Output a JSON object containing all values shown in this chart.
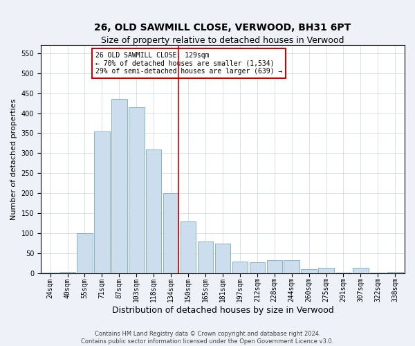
{
  "title": "26, OLD SAWMILL CLOSE, VERWOOD, BH31 6PT",
  "subtitle": "Size of property relative to detached houses in Verwood",
  "xlabel": "Distribution of detached houses by size in Verwood",
  "ylabel": "Number of detached properties",
  "categories": [
    "24sqm",
    "40sqm",
    "55sqm",
    "71sqm",
    "87sqm",
    "103sqm",
    "118sqm",
    "134sqm",
    "150sqm",
    "165sqm",
    "181sqm",
    "197sqm",
    "212sqm",
    "228sqm",
    "244sqm",
    "260sqm",
    "275sqm",
    "291sqm",
    "307sqm",
    "322sqm",
    "338sqm"
  ],
  "values": [
    2,
    4,
    100,
    355,
    435,
    415,
    310,
    200,
    130,
    80,
    75,
    30,
    28,
    33,
    33,
    10,
    13,
    2,
    13,
    2,
    4
  ],
  "bar_color": "#ccdded",
  "bar_edge_color": "#7aaabb",
  "vline_x_index": 7,
  "vline_color": "#cc0000",
  "annotation_text": "26 OLD SAWMILL CLOSE: 129sqm\n← 70% of detached houses are smaller (1,534)\n29% of semi-detached houses are larger (639) →",
  "annotation_box_color": "#ffffff",
  "annotation_box_edge": "#cc0000",
  "ylim": [
    0,
    570
  ],
  "yticks": [
    0,
    50,
    100,
    150,
    200,
    250,
    300,
    350,
    400,
    450,
    500,
    550
  ],
  "title_fontsize": 10,
  "subtitle_fontsize": 9,
  "xlabel_fontsize": 9,
  "ylabel_fontsize": 8,
  "tick_fontsize": 7,
  "annot_fontsize": 7,
  "footer_text": "Contains HM Land Registry data © Crown copyright and database right 2024.\nContains public sector information licensed under the Open Government Licence v3.0.",
  "footer_fontsize": 6,
  "background_color": "#eef2f8",
  "plot_bg_color": "#ffffff",
  "grid_color": "#c8d4e4"
}
